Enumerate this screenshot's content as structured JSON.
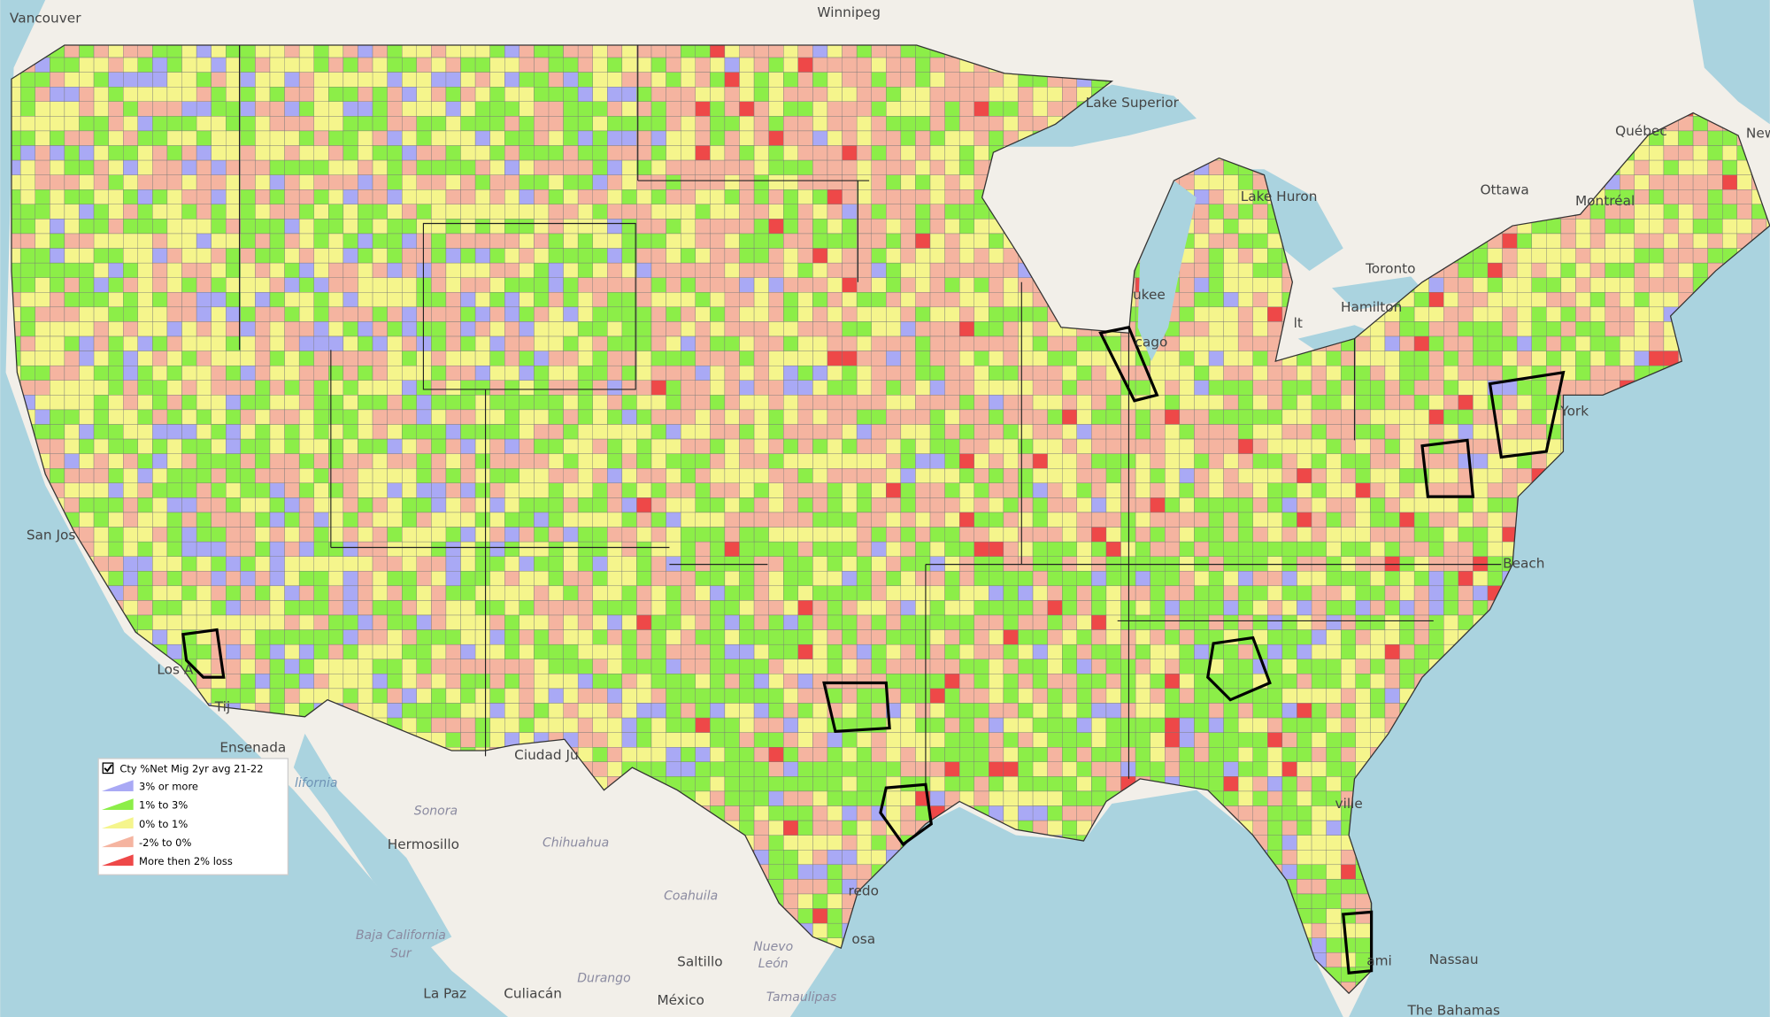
{
  "map": {
    "places": [
      "Vancouver",
      "Winnipeg",
      "Lake Superior",
      "Lake Huron",
      "Québec",
      "Ottawa",
      "Montréal",
      "Toronto",
      "Hamilton",
      "ukee",
      "cago",
      "lt",
      "York",
      "Beach",
      "San Jos",
      "Los A",
      "Tij",
      "Ensenada",
      "Ciudad Ju",
      "Hermosillo",
      "La Paz",
      "Culiacán",
      "Saltillo",
      "México",
      "redo",
      "osa",
      "ville",
      "ami",
      "Nassau",
      "The Bahamas",
      "New"
    ],
    "regions": [
      "Sonora",
      "Chihuahua",
      "Coahuila",
      "Baja California",
      "Sur",
      "Nuevo",
      "León",
      "Durango",
      "Tamaulipas",
      "lifornia"
    ],
    "legend": {
      "title": "Cty %Net Mig 2yr avg 21-22",
      "classes": [
        {
          "label": "3% or more",
          "color": "#a9a9f5"
        },
        {
          "label": "1% to 3%",
          "color": "#8cee48"
        },
        {
          "label": "0% to 1%",
          "color": "#f5f58c"
        },
        {
          "label": "-2% to 0%",
          "color": "#f5b4a0"
        },
        {
          "label": "More then 2% loss",
          "color": "#ee4848"
        }
      ]
    }
  }
}
